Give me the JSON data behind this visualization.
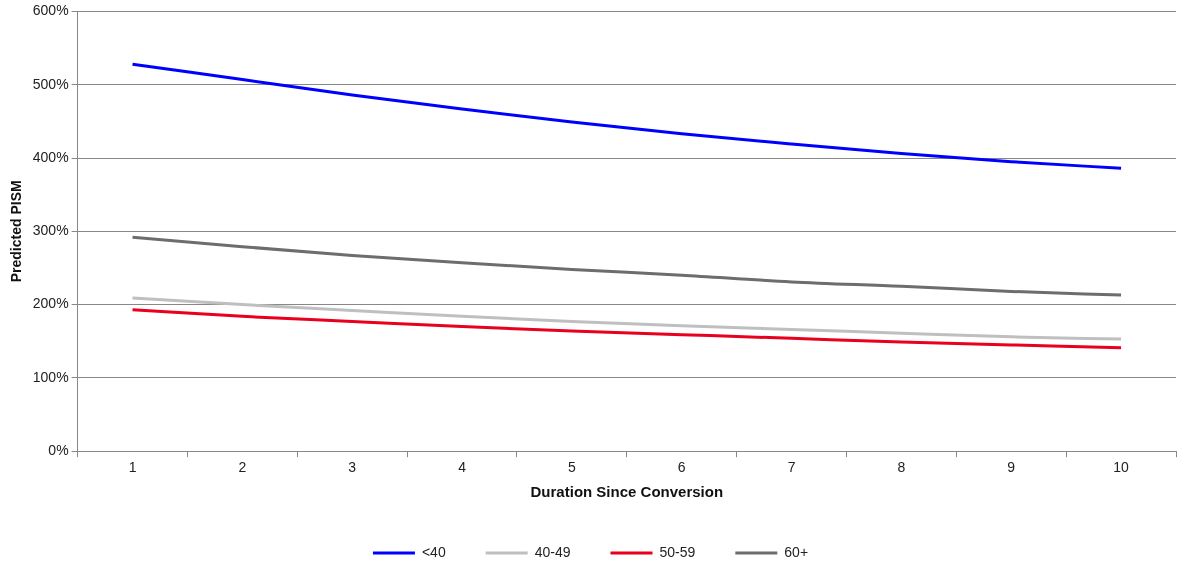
{
  "chart_data": {
    "type": "line",
    "xlabel": "Duration Since Conversion",
    "ylabel": "Predicted PISM",
    "categories": [
      "1",
      "2",
      "3",
      "4",
      "5",
      "6",
      "7",
      "8",
      "9",
      "10"
    ],
    "series": [
      {
        "name": "<40",
        "color": "#0000ff",
        "values": [
          528,
          507,
          486,
          467,
          449,
          433,
          419,
          406,
          395,
          386
        ]
      },
      {
        "name": "40-49",
        "color": "#bfbfbf",
        "values": [
          209,
          200,
          192,
          184,
          177,
          171,
          166,
          161,
          156,
          153
        ]
      },
      {
        "name": "50-59",
        "color": "#e8001c",
        "values": [
          193,
          184,
          177,
          170,
          164,
          159,
          154,
          149,
          145,
          141
        ]
      },
      {
        "name": "60+",
        "color": "#6d6d6d",
        "values": [
          292,
          279,
          267,
          257,
          248,
          240,
          231,
          225,
          218,
          213
        ]
      }
    ],
    "ylim": [
      0,
      600
    ],
    "yticks": [
      {
        "value": 0,
        "label": "0%"
      },
      {
        "value": 100,
        "label": "100%"
      },
      {
        "value": 200,
        "label": "200%"
      },
      {
        "value": 300,
        "label": "300%"
      },
      {
        "value": 400,
        "label": "400%"
      },
      {
        "value": 500,
        "label": "500%"
      },
      {
        "value": 600,
        "label": "600%"
      }
    ],
    "grid": "y",
    "legend": "bottom",
    "marker": "none",
    "line_style": "solid"
  }
}
